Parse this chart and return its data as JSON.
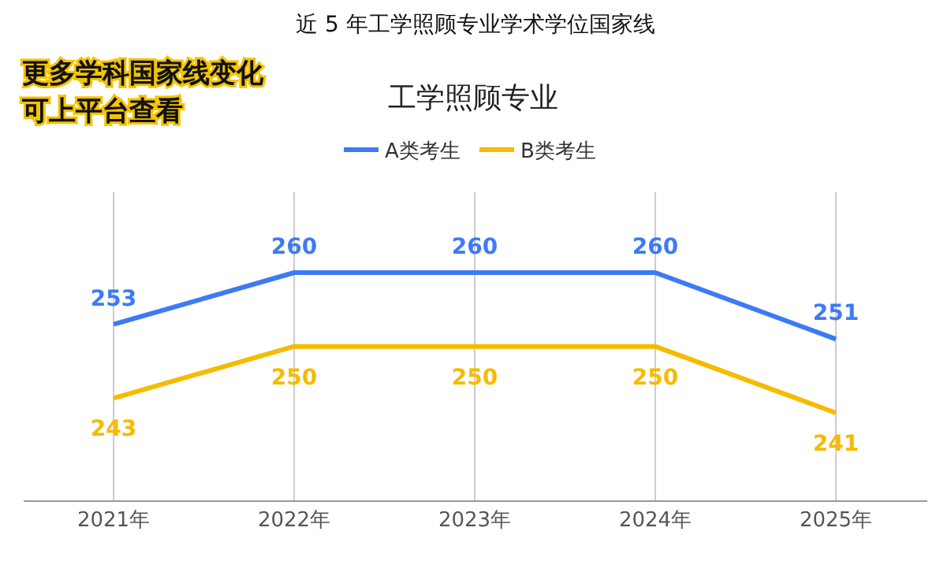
{
  "chart_data": {
    "type": "line",
    "title": "近 5 年工学照顾专业学术学位国家线",
    "subtitle": "工学照顾专业",
    "annotations": [
      "更多学科国家线变化",
      "可上平台查看"
    ],
    "categories": [
      "2021年",
      "2022年",
      "2023年",
      "2024年",
      "2025年"
    ],
    "series": [
      {
        "name": "A类考生",
        "color": "#3d7af5",
        "values": [
          253,
          260,
          260,
          260,
          251
        ]
      },
      {
        "name": "B类考生",
        "color": "#f5bb00",
        "values": [
          243,
          250,
          250,
          250,
          241
        ]
      }
    ],
    "data_labels": true,
    "grid": "x",
    "legend": "top",
    "marker": "none",
    "line_style": "solid"
  }
}
